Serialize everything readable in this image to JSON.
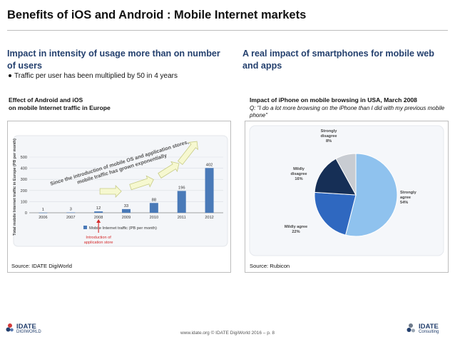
{
  "slide": {
    "title": "Benefits of iOS and Android : Mobile Internet markets",
    "footer": "www.idate.org © IDATE DigiWorld 2016 – p. 8"
  },
  "left": {
    "heading": "Impact in intensity of usage more than on number of users",
    "bullet": "Traffic per user has been multiplied by 50 in 4 years",
    "figure_title_1": "Effect of Android and iOS",
    "figure_title_2": "on mobile Internet traffic in Europe",
    "source": "Source: IDATE DigiWorld"
  },
  "right": {
    "heading": "A real impact of smartphones for mobile web and apps",
    "figure_title": "Impact of iPhone on mobile browsing in USA, March 2008",
    "question": "Q: \"I do a lot more browsing on the iPhone than I did with my previous mobile phone\"",
    "source": "Source: Rubicon"
  },
  "logos": {
    "left_name": "IDATE",
    "left_sub": "DIGIWORLD",
    "right_name": "IDATE",
    "right_sub": "Consulting"
  },
  "colors": {
    "heading": "#24406e",
    "bar": "#4a7ab8",
    "arrow_fill": "#f6f8d0",
    "arrow_stroke": "#c8cc86",
    "intro_red": "#d42a2a",
    "pie_strongly_agree": "#8fc2ee",
    "pie_mildly_agree": "#2f68c0",
    "pie_mildly_disagree": "#162f56",
    "pie_strongly_disagree": "#c8ccd2"
  },
  "chart_data": [
    {
      "type": "bar",
      "categories": [
        "2006",
        "2007",
        "2008",
        "2009",
        "2010",
        "2011",
        "2012"
      ],
      "values": [
        1,
        3,
        12,
        33,
        88,
        196,
        402
      ],
      "ylabel": "Total mobile Internet traffic in Europe (PB per month)",
      "ylim": [
        0,
        500
      ],
      "yticks": [
        "0",
        "100",
        "200",
        "300",
        "400",
        "500"
      ],
      "legend": "Mobile Internet traffic (PB per month)",
      "legend_position": "bottom",
      "grid": true,
      "annotation": "Since the introduction of mobile OS and application stores, mobile traffic has grown exponentially",
      "marker_label_1": "Introduction of",
      "marker_label_2": "application store",
      "marker_category": "2008"
    },
    {
      "type": "pie",
      "slices": [
        {
          "label_1": "Strongly",
          "label_2": "agree",
          "value_label": "54%",
          "value": 54
        },
        {
          "label_1": "Mildly agree",
          "label_2": "",
          "value_label": "22%",
          "value": 22
        },
        {
          "label_1": "Mildly",
          "label_2": "disagree",
          "value_label": "16%",
          "value": 16
        },
        {
          "label_1": "Strongly",
          "label_2": "disagree",
          "value_label": "8%",
          "value": 8
        }
      ]
    }
  ]
}
